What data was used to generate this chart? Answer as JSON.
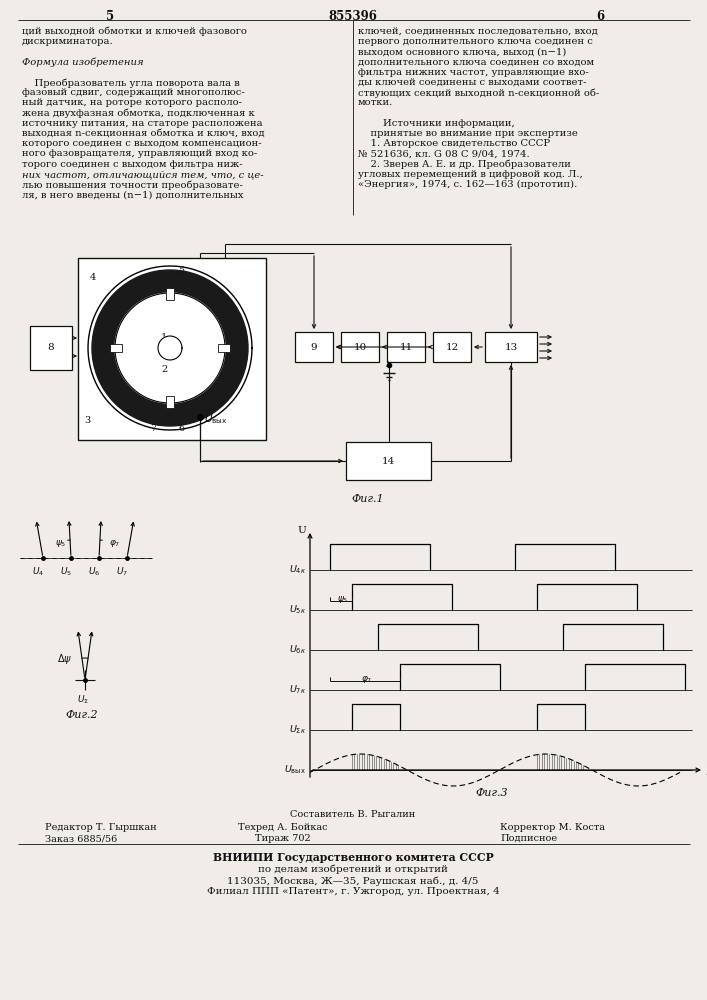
{
  "bg_color": "#f0ede8",
  "text_color": "#1a1a1a",
  "title_number": "855396",
  "page_left": "5",
  "page_right": "6",
  "text_left_col": [
    "ций выходной обмотки и ключей фазового",
    "дискриминатора.",
    "",
    "Формула изобретения",
    "",
    "    Преобразователь угла поворота вала в",
    "фазовый сдвиг, содержащий многополюс-",
    "ный датчик, на роторе которого располо-",
    "жена двухфазная обмотка, подключенная к",
    "источнику питания, на статоре расположена",
    "выходная n-секционная обмотка и ключ, вход",
    "которого соединен с выходом компенсацион-",
    "ного фазовращателя, управляющий вход ко-",
    "торого соединен с выходом фильтра ниж-",
    "них частот, отличающийся тем, что, с це-",
    "лью повышения точности преобразовате-",
    "ля, в него введены (n−1) дополнительных"
  ],
  "text_right_col": [
    "ключей, соединенных последовательно, вход",
    "первого дополнительного ключа соединен с",
    "выходом основного ключа, выход (n−1)",
    "дополнительного ключа соединен со входом",
    "фильтра нижних частот, управляющие вхо-",
    "ды ключей соединены с выходами соответ-",
    "ствующих секций выходной n-секционной об-",
    "мотки.",
    "",
    "        Источники информации,",
    "    принятые во внимание при экспертизе",
    "    1. Авторское свидетельство СССР",
    "№ 521636, кл. G 08 C 9/04, 1974.",
    "    2. Зверев А. Е. и др. Преобразователи",
    "угловых перемещений в цифровой код. Л.,",
    "«Энергия», 1974, с. 162—163 (прототип)."
  ]
}
